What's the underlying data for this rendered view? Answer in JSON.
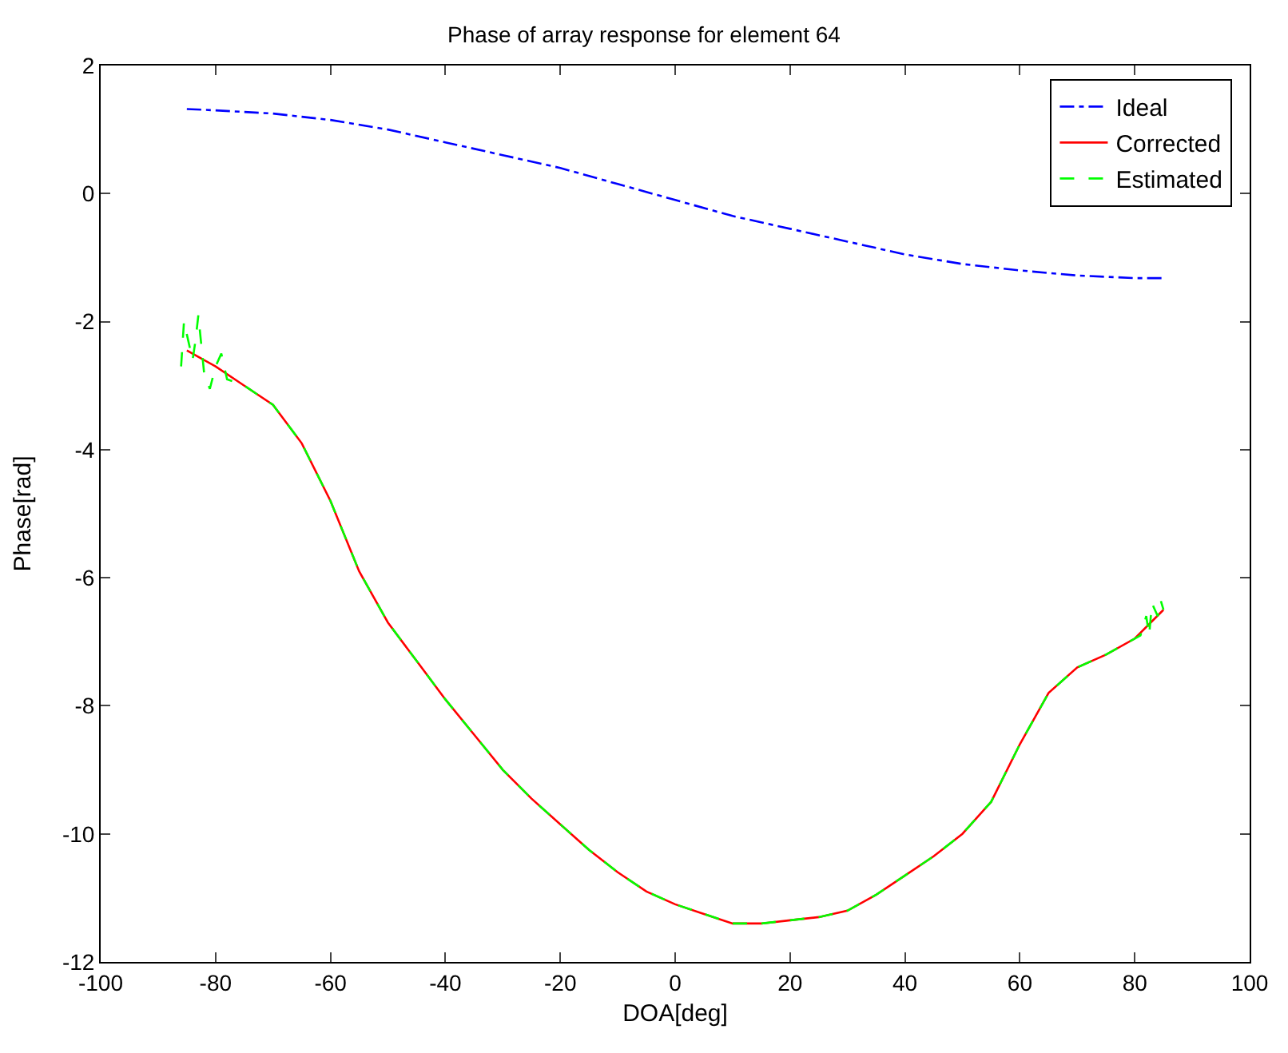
{
  "chart_data": {
    "type": "line",
    "title": "Phase of array response for element 64",
    "xlabel": "DOA[deg]",
    "ylabel": "Phase[rad]",
    "xlim": [
      -100,
      100
    ],
    "xticks": [
      -100,
      -80,
      -60,
      -40,
      -20,
      0,
      20,
      40,
      60,
      80,
      100
    ],
    "ylim": [
      -12,
      2
    ],
    "yticks": [
      -12,
      -10,
      -8,
      -6,
      -4,
      -2,
      0,
      2
    ],
    "legend": "top right",
    "marker": "none",
    "series": [
      {
        "name": "Ideal",
        "color": "#0000ff",
        "line_style": "dashdot",
        "x": [
          -85,
          -80,
          -70,
          -60,
          -50,
          -40,
          -30,
          -20,
          -10,
          0,
          10,
          20,
          30,
          40,
          50,
          60,
          70,
          80,
          85
        ],
        "values": [
          1.32,
          1.3,
          1.25,
          1.15,
          1.0,
          0.8,
          0.6,
          0.4,
          0.15,
          -0.1,
          -0.35,
          -0.55,
          -0.75,
          -0.95,
          -1.1,
          -1.2,
          -1.28,
          -1.32,
          -1.32
        ]
      },
      {
        "name": "Corrected",
        "color": "#ff0000",
        "line_style": "solid",
        "x": [
          -85,
          -80,
          -75,
          -70,
          -65,
          -60,
          -55,
          -50,
          -45,
          -40,
          -35,
          -30,
          -25,
          -20,
          -15,
          -10,
          -5,
          0,
          5,
          10,
          15,
          20,
          25,
          30,
          35,
          40,
          45,
          50,
          55,
          60,
          65,
          70,
          75,
          80,
          85
        ],
        "values": [
          -2.45,
          -2.7,
          -3.0,
          -3.3,
          -3.9,
          -4.8,
          -5.9,
          -6.7,
          -7.3,
          -7.9,
          -8.45,
          -9.0,
          -9.45,
          -9.85,
          -10.25,
          -10.6,
          -10.9,
          -11.1,
          -11.25,
          -11.4,
          -11.4,
          -11.35,
          -11.3,
          -11.2,
          -10.95,
          -10.65,
          -10.35,
          -10.0,
          -9.5,
          -8.6,
          -7.8,
          -7.4,
          -7.2,
          -6.95,
          -6.5
        ]
      },
      {
        "name": "Estimated",
        "color": "#00ff00",
        "line_style": "dashed",
        "x": [
          -86,
          -85.5,
          -85,
          -84,
          -83.5,
          -83,
          -82,
          -81,
          -80,
          -79,
          -78,
          -75,
          -70,
          -65,
          -60,
          -55,
          -50,
          -45,
          -40,
          -35,
          -30,
          -25,
          -20,
          -15,
          -10,
          -5,
          0,
          5,
          10,
          15,
          20,
          25,
          30,
          35,
          40,
          45,
          50,
          55,
          60,
          65,
          70,
          75,
          80,
          81,
          82,
          82.5,
          83,
          84,
          84.5,
          85
        ],
        "values": [
          -2.7,
          -2.0,
          -2.2,
          -2.6,
          -2.3,
          -1.9,
          -2.8,
          -3.05,
          -2.7,
          -2.5,
          -2.9,
          -3.0,
          -3.3,
          -3.9,
          -4.8,
          -5.9,
          -6.7,
          -7.3,
          -7.9,
          -8.45,
          -9.0,
          -9.45,
          -9.85,
          -10.25,
          -10.6,
          -10.9,
          -11.1,
          -11.25,
          -11.4,
          -11.4,
          -11.35,
          -11.3,
          -11.2,
          -10.95,
          -10.65,
          -10.35,
          -10.0,
          -9.5,
          -8.6,
          -7.8,
          -7.4,
          -7.2,
          -6.95,
          -6.9,
          -6.6,
          -6.9,
          -6.4,
          -6.6,
          -6.35,
          -6.5
        ]
      }
    ]
  }
}
